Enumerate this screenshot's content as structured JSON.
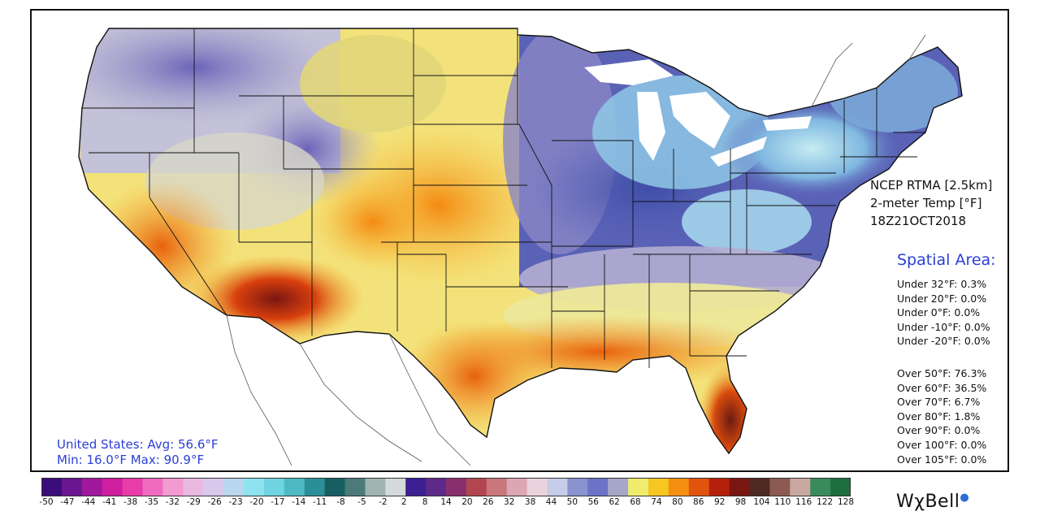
{
  "product": {
    "source": "NCEP RTMA [2.5km]",
    "variable": "2-meter Temp [°F]",
    "valid_time": "18Z21OCT2018"
  },
  "spatial_area": {
    "title": "Spatial Area:",
    "under": [
      "Under 32°F: 0.3%",
      "Under 20°F: 0.0%",
      "Under 0°F: 0.0%",
      "Under -10°F: 0.0%",
      "Under -20°F: 0.0%"
    ],
    "over": [
      "Over 50°F: 76.3%",
      "Over 60°F: 36.5%",
      "Over 70°F: 6.7%",
      "Over 80°F: 1.8%",
      "Over 90°F: 0.0%",
      "Over 100°F: 0.0%",
      "Over 105°F: 0.0%"
    ]
  },
  "stats": {
    "avg_line": "United States: Avg:  56.6°F",
    "minmax_line": "Min:  16.0°F Max:  90.9°F"
  },
  "colorbar": {
    "ticks": [
      "-50",
      "-47",
      "-44",
      "-41",
      "-38",
      "-35",
      "-32",
      "-29",
      "-26",
      "-23",
      "-20",
      "-17",
      "-14",
      "-11",
      "-8",
      "-5",
      "-2",
      "2",
      "8",
      "14",
      "20",
      "26",
      "32",
      "38",
      "44",
      "50",
      "56",
      "62",
      "68",
      "74",
      "80",
      "86",
      "92",
      "98",
      "104",
      "110",
      "116",
      "122",
      "128"
    ],
    "colors": [
      "#3a0d7a",
      "#6a1690",
      "#a0199c",
      "#cf1f9e",
      "#e83ca8",
      "#f06bbf",
      "#f39ad2",
      "#e9b9e2",
      "#d7c8ec",
      "#b9d6ef",
      "#8fe2ef",
      "#6fd3e0",
      "#4cb9c3",
      "#2c8f97",
      "#175e63",
      "#4b7a78",
      "#9fb3b0",
      "#d4dad9",
      "#3b1f93",
      "#5d2a8a",
      "#8a2f6d",
      "#b24650",
      "#c9777b",
      "#dca7b2",
      "#ead3dc",
      "#c7cce8",
      "#8893d0",
      "#6b73c6",
      "#a6a7c8",
      "#f0ec6e",
      "#f6c623",
      "#f68e10",
      "#e2540d",
      "#b5200c",
      "#7a1611",
      "#4e2a23",
      "#8d5a52",
      "#c9a8a0",
      "#3b8a5c",
      "#1f6e3f"
    ]
  },
  "brand": {
    "name": "WχBell"
  }
}
